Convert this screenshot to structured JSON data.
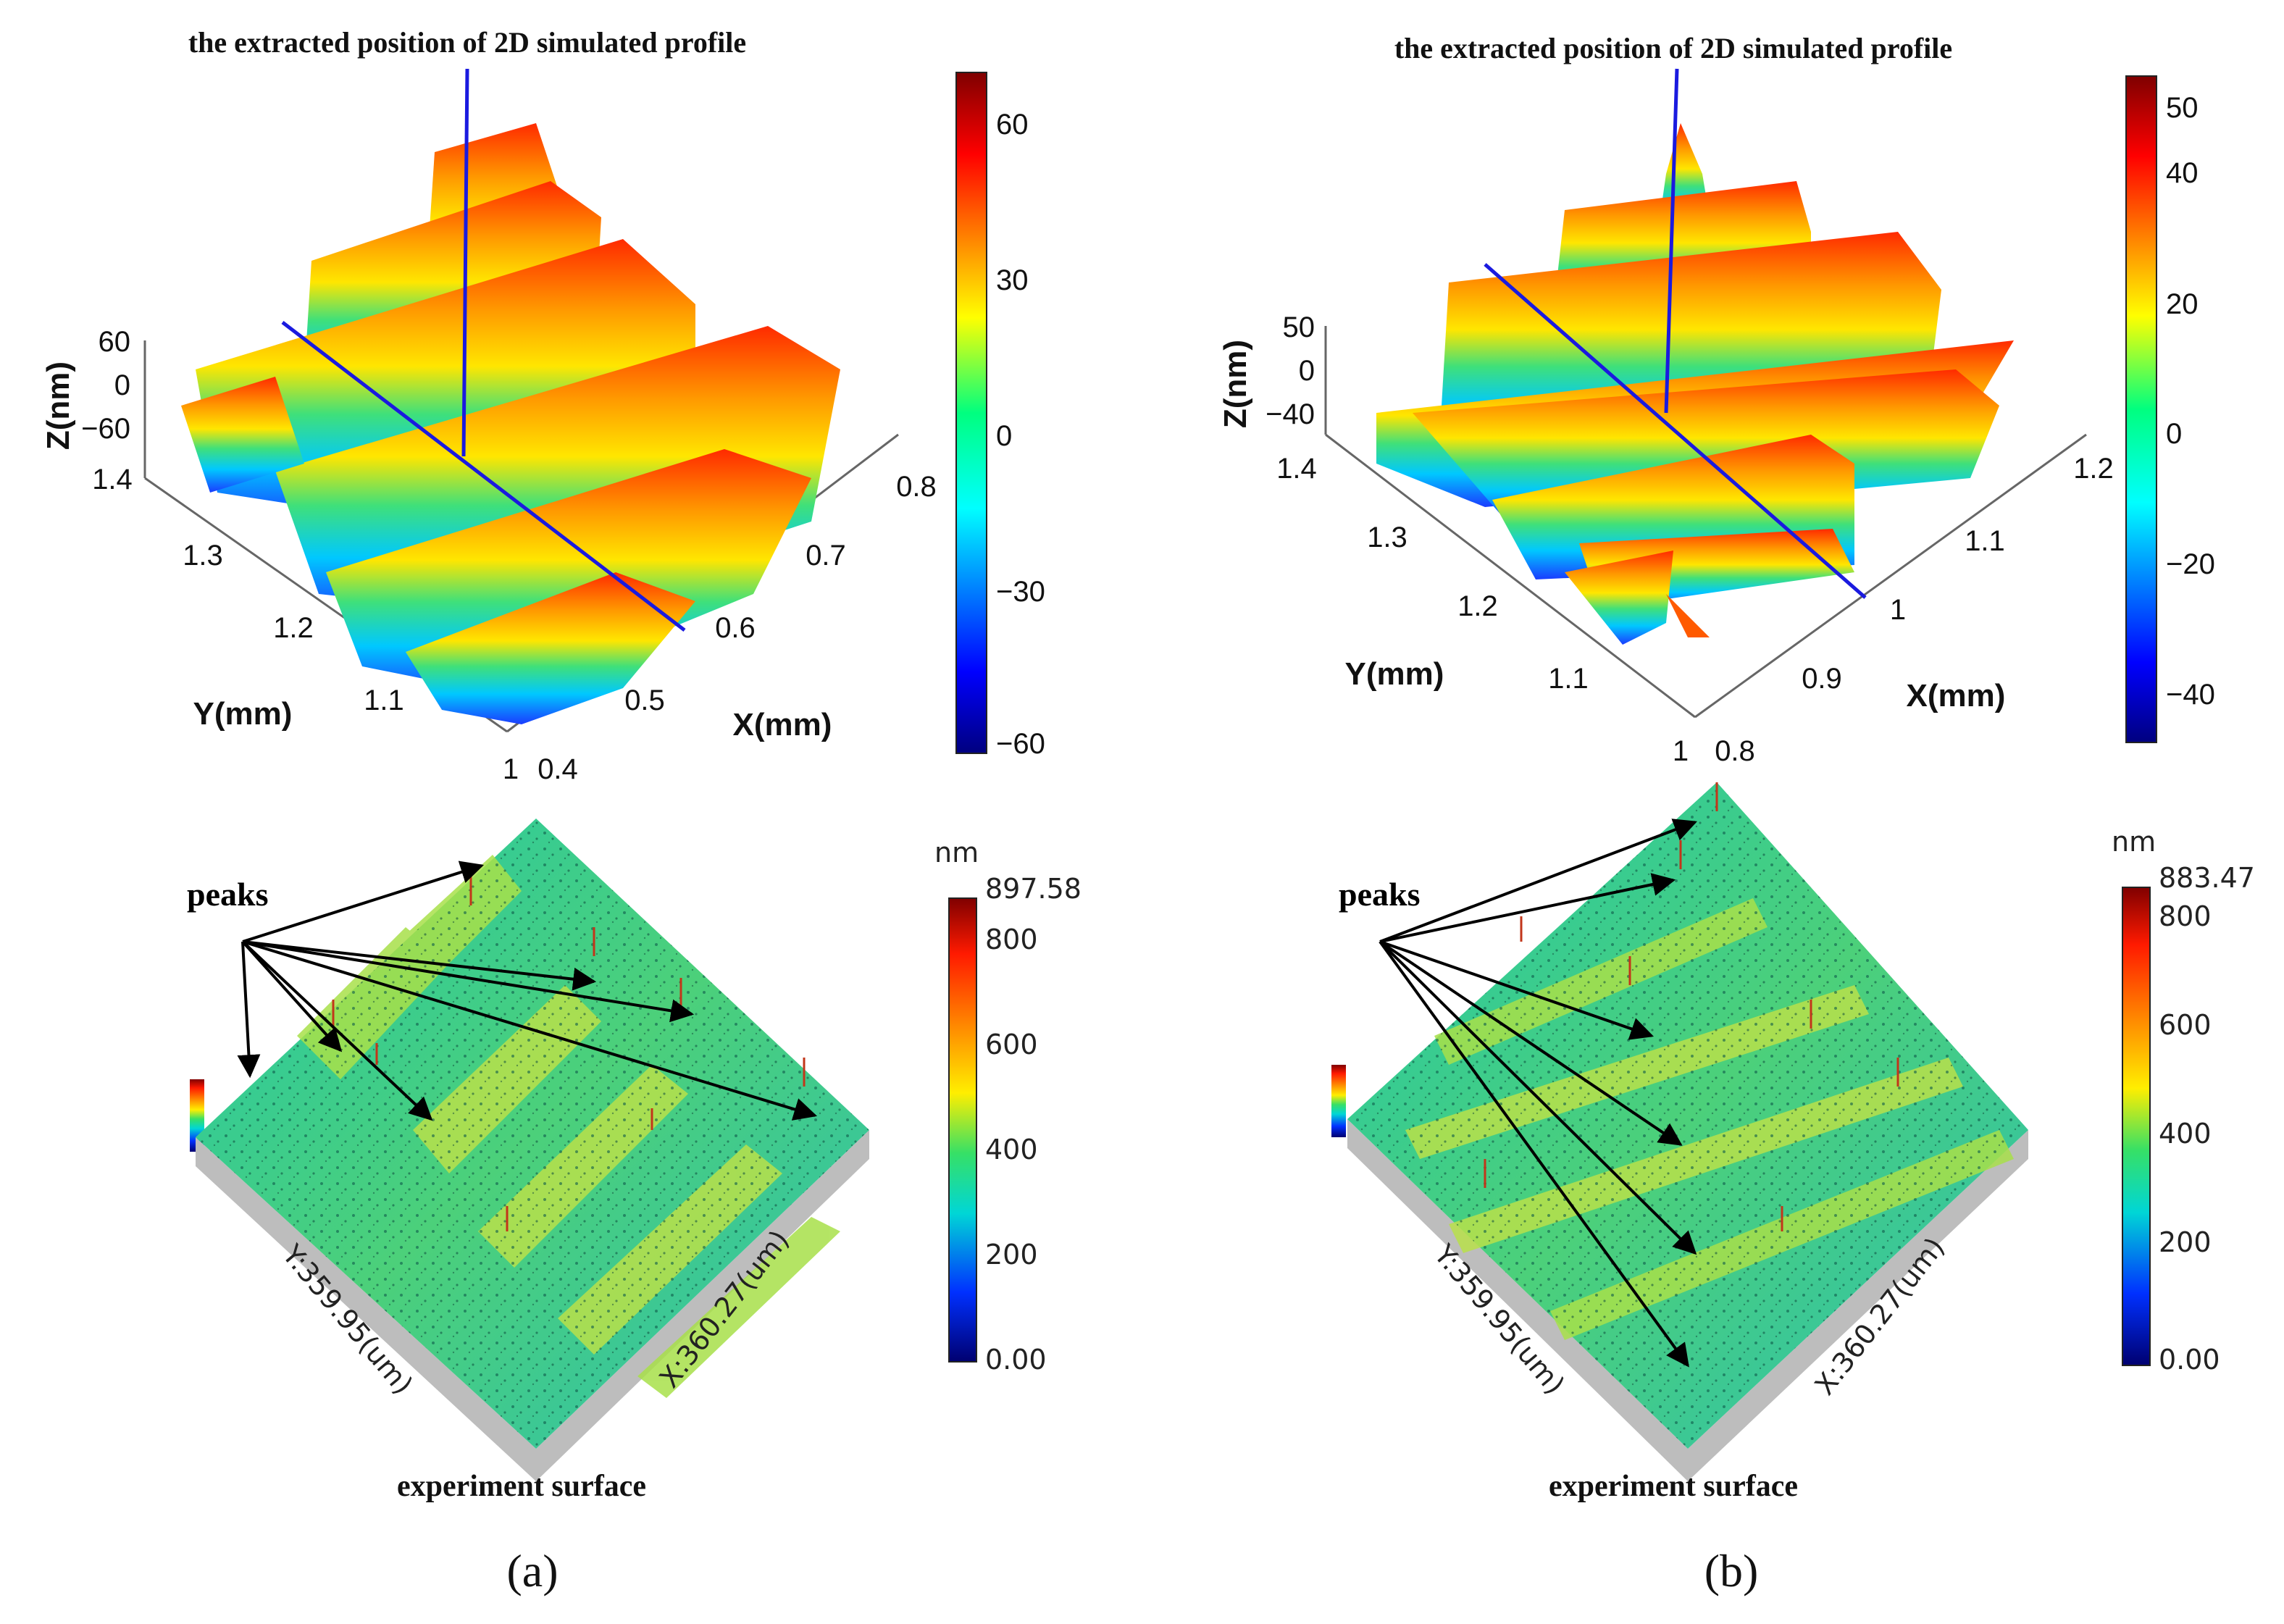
{
  "colors": {
    "profile_line": "#1a1adf",
    "arrow": "#000000",
    "gray_base": "#bdbdbd"
  },
  "panel_a": {
    "sublabel": "(a)",
    "sim": {
      "caption": "the extracted position of 2D simulated profile",
      "z_label": "Z(nm)",
      "z_ticks": [
        "60",
        "0",
        "−60"
      ],
      "y_label": "Y(mm)",
      "y_ticks": [
        "1.4",
        "1.3",
        "1.2",
        "1.1",
        "1"
      ],
      "x_label": "X(mm)",
      "x_ticks": [
        "0.4",
        "0.5",
        "0.6",
        "0.7",
        "0.8"
      ],
      "colorbar_ticks": [
        "60",
        "30",
        "0",
        "−30",
        "−60"
      ]
    },
    "exp": {
      "peaks_label": "peaks",
      "y_axis": "Y:359.95(um)",
      "x_axis": "X:360.27(um)",
      "caption": "experiment surface",
      "colorbar_unit": "nm",
      "colorbar_max": "897.58",
      "colorbar_ticks": [
        "800",
        "600",
        "400",
        "200",
        "0.00"
      ]
    }
  },
  "panel_b": {
    "sublabel": "(b)",
    "sim": {
      "caption": "the extracted position of 2D simulated profile",
      "z_label": "Z(nm)",
      "z_ticks": [
        "50",
        "0",
        "−40"
      ],
      "y_label": "Y(mm)",
      "y_ticks": [
        "1.4",
        "1.3",
        "1.2",
        "1.1",
        "1"
      ],
      "x_label": "X(mm)",
      "x_ticks": [
        "0.8",
        "0.9",
        "1",
        "1.1",
        "1.2"
      ],
      "colorbar_ticks": [
        "50",
        "40",
        "20",
        "0",
        "−20",
        "−40"
      ]
    },
    "exp": {
      "peaks_label": "peaks",
      "y_axis": "Y:359.95(um)",
      "x_axis": "X:360.27(um)",
      "caption": "experiment surface",
      "colorbar_unit": "nm",
      "colorbar_max": "883.47",
      "colorbar_ticks": [
        "800",
        "600",
        "400",
        "200",
        "0.00"
      ]
    }
  }
}
